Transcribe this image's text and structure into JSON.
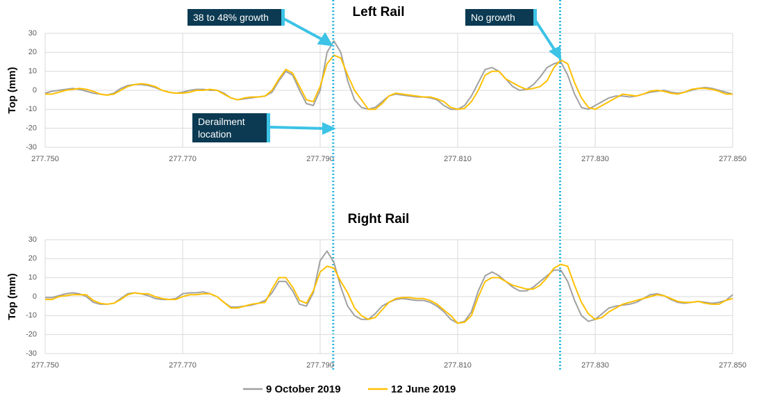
{
  "chart_data": [
    {
      "type": "line",
      "title": "Left Rail",
      "y_label": "Top (mm)",
      "xlim": [
        277.75,
        277.85
      ],
      "ylim": [
        -30,
        30
      ],
      "xticks": [
        {
          "value": 277.75,
          "label": "277.750"
        },
        {
          "value": 277.77,
          "label": "277.770"
        },
        {
          "value": 277.79,
          "label": "277.790"
        },
        {
          "value": 277.81,
          "label": "277.810"
        },
        {
          "value": 277.83,
          "label": "277.830"
        },
        {
          "value": 277.85,
          "label": "277.850"
        }
      ],
      "yticks": [
        -30,
        -20,
        -10,
        0,
        10,
        20,
        30
      ],
      "grid": true,
      "vlines": [
        277.7919,
        277.8249
      ],
      "annotations": [
        "38 to 48% growth",
        "No growth",
        "Derailment location"
      ],
      "x": [
        277.75,
        277.751,
        277.752,
        277.753,
        277.754,
        277.755,
        277.756,
        277.757,
        277.758,
        277.759,
        277.76,
        277.761,
        277.762,
        277.763,
        277.764,
        277.765,
        277.766,
        277.767,
        277.768,
        277.769,
        277.77,
        277.771,
        277.772,
        277.773,
        277.774,
        277.775,
        277.776,
        277.777,
        277.778,
        277.779,
        277.78,
        277.781,
        277.782,
        277.783,
        277.784,
        277.785,
        277.786,
        277.787,
        277.788,
        277.789,
        277.79,
        277.791,
        277.792,
        277.793,
        277.794,
        277.795,
        277.796,
        277.797,
        277.798,
        277.799,
        277.8,
        277.801,
        277.802,
        277.803,
        277.804,
        277.805,
        277.806,
        277.807,
        277.808,
        277.809,
        277.81,
        277.811,
        277.812,
        277.813,
        277.814,
        277.815,
        277.816,
        277.817,
        277.818,
        277.819,
        277.82,
        277.821,
        277.822,
        277.823,
        277.824,
        277.825,
        277.826,
        277.827,
        277.828,
        277.829,
        277.83,
        277.831,
        277.832,
        277.833,
        277.834,
        277.835,
        277.836,
        277.837,
        277.838,
        277.839,
        277.84,
        277.841,
        277.842,
        277.843,
        277.844,
        277.845,
        277.846,
        277.847,
        277.848,
        277.849,
        277.85
      ],
      "series": [
        {
          "name": "9 October 2019",
          "color": "#a0a0a0",
          "values": [
            -1.5,
            -0.5,
            0,
            0.5,
            1,
            0.5,
            -0.5,
            -1.5,
            -2,
            -2.5,
            -1.5,
            1,
            2.5,
            3,
            3,
            2.5,
            1.5,
            0,
            -1,
            -1.5,
            -1,
            0,
            0.5,
            0.5,
            0,
            0,
            -1.5,
            -4,
            -5,
            -4.5,
            -4,
            -3.5,
            -3,
            -1,
            5,
            10,
            8,
            0,
            -7,
            -8,
            0,
            20,
            26,
            20,
            5,
            -5,
            -9,
            -10,
            -9,
            -6,
            -3,
            -2,
            -2.5,
            -3,
            -3.5,
            -3.5,
            -4,
            -5,
            -8,
            -10,
            -10,
            -8,
            -3,
            4,
            11,
            12,
            10,
            6,
            2,
            0,
            0.5,
            3,
            7,
            12,
            14,
            15,
            8,
            -2,
            -9,
            -10,
            -8,
            -6,
            -4,
            -3,
            -3,
            -3.5,
            -3,
            -2,
            -1,
            -0.5,
            0,
            -1,
            -1.5,
            -1,
            0,
            1,
            1.5,
            1,
            0,
            -1,
            -2
          ]
        },
        {
          "name": "12 June 2019",
          "color": "#ffc000",
          "values": [
            -2,
            -2,
            -1,
            0,
            0.5,
            1,
            0.5,
            -0.5,
            -2,
            -2.5,
            -2,
            0,
            2,
            3,
            3.5,
            3,
            2,
            0,
            -1,
            -1.5,
            -1.5,
            -1,
            0,
            0,
            0.5,
            0,
            -2,
            -4,
            -5,
            -4,
            -3.5,
            -3.5,
            -3,
            0,
            6,
            11,
            9,
            2,
            -5,
            -6,
            2,
            14,
            18.5,
            17,
            8,
            0,
            -5,
            -10,
            -10,
            -7,
            -3,
            -1.5,
            -2,
            -2.5,
            -3,
            -3.5,
            -3.5,
            -4.5,
            -6,
            -9,
            -10,
            -9.5,
            -6,
            0,
            8,
            10,
            10,
            6,
            4,
            2,
            0.5,
            1,
            2,
            5,
            12,
            16,
            14,
            4,
            -4,
            -9,
            -10,
            -8,
            -6,
            -4,
            -2,
            -2.5,
            -3,
            -2,
            -0.5,
            0,
            -0.5,
            -1.5,
            -2,
            -1,
            0.5,
            1,
            1,
            0.5,
            -0.5,
            -2,
            -2
          ]
        }
      ]
    },
    {
      "type": "line",
      "title": "Right Rail",
      "y_label": "Top (mm)",
      "xlim": [
        277.75,
        277.85
      ],
      "ylim": [
        -30,
        30
      ],
      "xticks": [
        {
          "value": 277.75,
          "label": "277.750"
        },
        {
          "value": 277.77,
          "label": "277.770"
        },
        {
          "value": 277.79,
          "label": "277.790"
        },
        {
          "value": 277.81,
          "label": "277.810"
        },
        {
          "value": 277.83,
          "label": "277.830"
        },
        {
          "value": 277.85,
          "label": "277.850"
        }
      ],
      "yticks": [
        -30,
        -20,
        -10,
        0,
        10,
        20,
        30
      ],
      "grid": true,
      "x": [
        277.75,
        277.751,
        277.752,
        277.753,
        277.754,
        277.755,
        277.756,
        277.757,
        277.758,
        277.759,
        277.76,
        277.761,
        277.762,
        277.763,
        277.764,
        277.765,
        277.766,
        277.767,
        277.768,
        277.769,
        277.77,
        277.771,
        277.772,
        277.773,
        277.774,
        277.775,
        277.776,
        277.777,
        277.778,
        277.779,
        277.78,
        277.781,
        277.782,
        277.783,
        277.784,
        277.785,
        277.786,
        277.787,
        277.788,
        277.789,
        277.79,
        277.791,
        277.792,
        277.793,
        277.794,
        277.795,
        277.796,
        277.797,
        277.798,
        277.799,
        277.8,
        277.801,
        277.802,
        277.803,
        277.804,
        277.805,
        277.806,
        277.807,
        277.808,
        277.809,
        277.81,
        277.811,
        277.812,
        277.813,
        277.814,
        277.815,
        277.816,
        277.817,
        277.818,
        277.819,
        277.82,
        277.821,
        277.822,
        277.823,
        277.824,
        277.825,
        277.826,
        277.827,
        277.828,
        277.829,
        277.83,
        277.831,
        277.832,
        277.833,
        277.834,
        277.835,
        277.836,
        277.837,
        277.838,
        277.839,
        277.84,
        277.841,
        277.842,
        277.843,
        277.844,
        277.845,
        277.846,
        277.847,
        277.848,
        277.849,
        277.85
      ],
      "series": [
        {
          "name": "9 October 2019",
          "color": "#a0a0a0",
          "values": [
            -0.5,
            -0.5,
            0.5,
            1.5,
            2,
            1.5,
            0,
            -3,
            -4,
            -4,
            -3.5,
            -1,
            1.5,
            2,
            1.5,
            0.5,
            -1,
            -1.5,
            -1.5,
            -1,
            1.5,
            2,
            2,
            2.5,
            1.5,
            0,
            -3,
            -5.5,
            -5.5,
            -5,
            -4.5,
            -3.5,
            -2,
            2,
            8,
            8,
            3,
            -4,
            -5,
            2,
            19,
            24,
            18,
            5,
            -5,
            -10,
            -12,
            -12,
            -9,
            -5,
            -3,
            -1.5,
            -1,
            -1.5,
            -2,
            -2,
            -3,
            -5,
            -8,
            -12,
            -14,
            -13,
            -8,
            3,
            11,
            13,
            11,
            8,
            5,
            3,
            3,
            5,
            8,
            11,
            14,
            14,
            8,
            -2,
            -10,
            -13,
            -12,
            -9,
            -6,
            -5,
            -4.5,
            -4,
            -3,
            -1,
            1,
            1.5,
            0.5,
            -1.5,
            -3,
            -3.5,
            -3,
            -2.5,
            -3,
            -3.5,
            -3,
            -2,
            1
          ]
        },
        {
          "name": "12 June 2019",
          "color": "#ffc000",
          "values": [
            -1.5,
            -1.5,
            0,
            0.5,
            1,
            1,
            1,
            -2,
            -3.5,
            -4,
            -3.5,
            -1.5,
            1,
            2,
            1.5,
            1.5,
            0,
            -1,
            -1.5,
            -1.5,
            0,
            1,
            1,
            1.5,
            1.5,
            0,
            -3,
            -6,
            -6,
            -5,
            -4,
            -3.5,
            -3,
            4,
            10,
            10,
            5,
            -2,
            -3.5,
            3,
            13,
            16,
            15,
            8,
            2,
            -6,
            -10,
            -12,
            -11,
            -7,
            -3,
            -1,
            -0.5,
            -0.5,
            -1,
            -1,
            -2,
            -4,
            -7,
            -10,
            -14,
            -13.5,
            -10,
            0,
            8,
            10,
            10,
            8,
            6,
            5,
            4,
            4,
            6,
            10,
            15,
            17,
            16,
            6,
            -3,
            -9,
            -12,
            -11,
            -8,
            -6,
            -4,
            -3,
            -2,
            -1,
            0,
            1,
            0.5,
            -1,
            -2.5,
            -3,
            -3,
            -2.5,
            -3.5,
            -4,
            -4,
            -2,
            -1
          ]
        }
      ]
    }
  ]
}
